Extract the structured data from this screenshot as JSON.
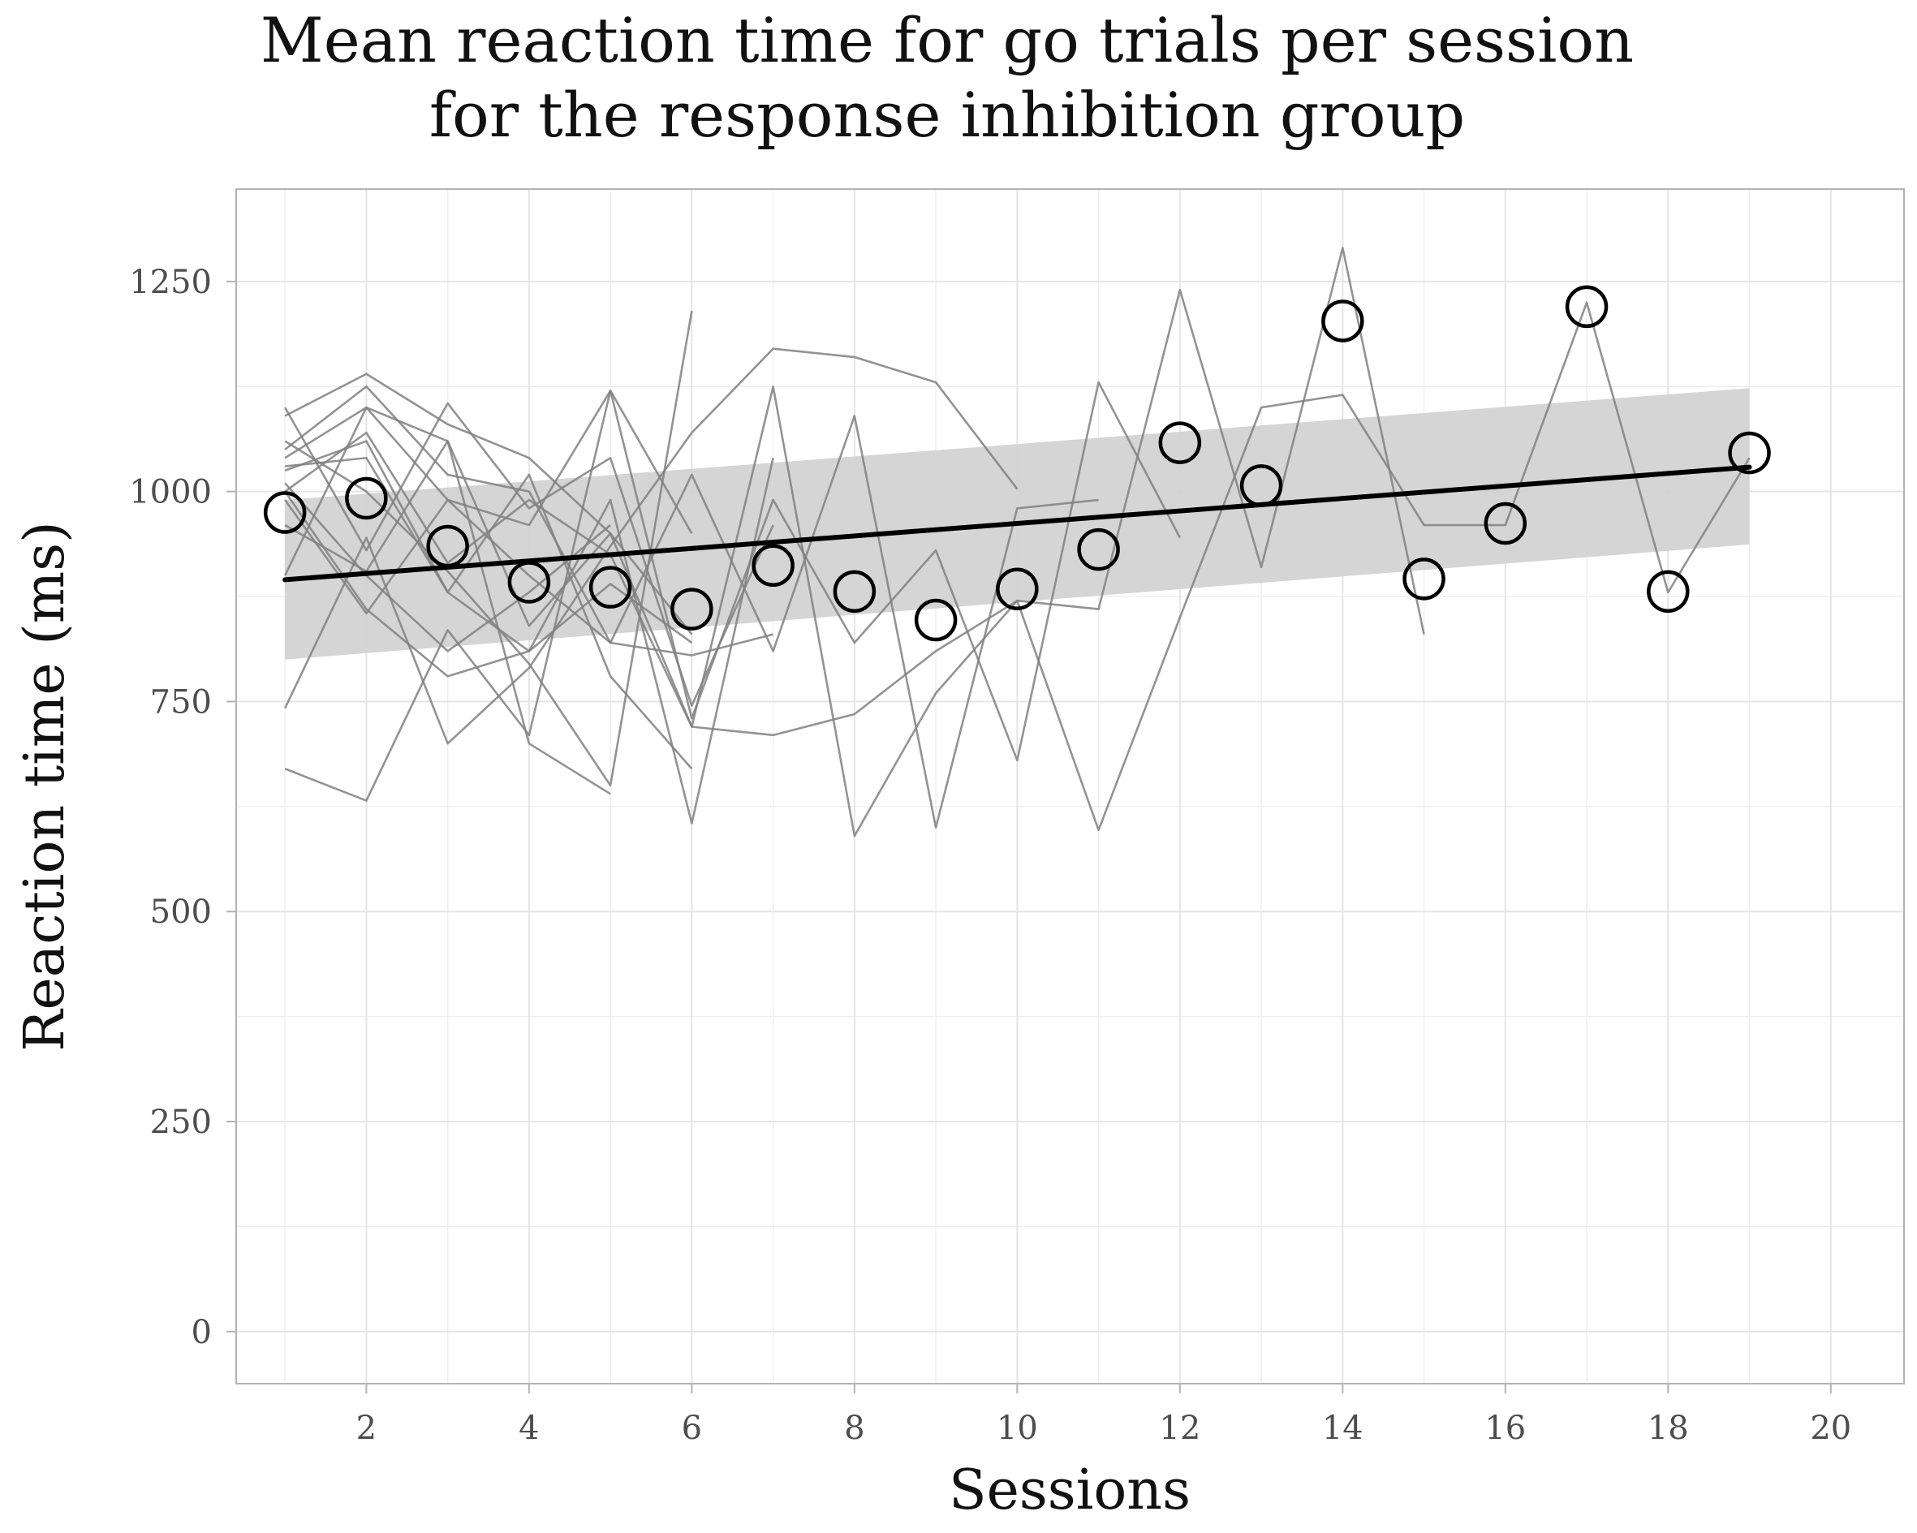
{
  "chart_data": {
    "type": "line",
    "title_lines": [
      "Mean reaction time for go trials per session",
      "for the response inhibition group"
    ],
    "xlabel": "Sessions",
    "ylabel": "Reaction time (ms)",
    "xlim": [
      0.4,
      20.9
    ],
    "ylim": [
      -62,
      1360
    ],
    "xticks": [
      2,
      4,
      6,
      8,
      10,
      12,
      14,
      16,
      18,
      20
    ],
    "xtick_labels": [
      "2",
      "4",
      "6",
      "8",
      "10",
      "12",
      "14",
      "16",
      "18",
      "20"
    ],
    "yticks": [
      0,
      250,
      500,
      750,
      1000,
      1250
    ],
    "ytick_labels": [
      "0",
      "250",
      "500",
      "750",
      "1000",
      "1250"
    ],
    "grid": true,
    "colors": {
      "participant_lines": "#808080",
      "mean_markers": "#000000",
      "trend_line": "#000000",
      "confidence_band": "#d3d3d3",
      "grid": "#e5e5e5",
      "panel_border": "#b3b3b3"
    },
    "session_means": {
      "x": [
        1,
        2,
        3,
        4,
        5,
        6,
        7,
        8,
        9,
        10,
        11,
        12,
        13,
        14,
        15,
        16,
        17,
        18,
        19
      ],
      "y": [
        975,
        992,
        935,
        892,
        886,
        860,
        912,
        881,
        847,
        884,
        931,
        1058,
        1007,
        1203,
        896,
        962,
        1220,
        881,
        1046
      ]
    },
    "trend": {
      "x": [
        1,
        19
      ],
      "y": [
        895,
        1029
      ],
      "band_lower": [
        800,
        937
      ],
      "band_upper": [
        990,
        1123
      ]
    },
    "participant_series": [
      {
        "x": [
          1,
          2,
          3,
          4,
          5,
          6,
          7,
          8,
          9,
          10
        ],
        "y": [
          742,
          945,
          700,
          790,
          935,
          1070,
          1170,
          1160,
          1130,
          1003
        ]
      },
      {
        "x": [
          1,
          2,
          3,
          4,
          5,
          6
        ],
        "y": [
          670,
          632,
          835,
          710,
          1120,
          950
        ]
      },
      {
        "x": [
          1,
          2,
          3,
          4,
          5,
          6,
          7
        ],
        "y": [
          1000,
          860,
          780,
          810,
          990,
          605,
          1040
        ]
      },
      {
        "x": [
          1,
          2,
          3,
          4,
          5,
          6,
          7,
          8,
          9,
          10,
          11,
          12,
          13,
          14,
          15
        ],
        "y": [
          1090,
          1140,
          1080,
          1040,
          950,
          720,
          710,
          735,
          810,
          870,
          860,
          1240,
          910,
          1290,
          830
        ]
      },
      {
        "x": [
          1,
          2,
          3,
          4,
          5
        ],
        "y": [
          1040,
          1100,
          1060,
          700,
          640
        ]
      },
      {
        "x": [
          1,
          2,
          3,
          4,
          5,
          6
        ],
        "y": [
          1060,
          1000,
          905,
          795,
          650,
          1215
        ]
      },
      {
        "x": [
          1,
          2,
          3,
          4,
          5,
          6,
          7
        ],
        "y": [
          1100,
          930,
          1105,
          980,
          1040,
          745,
          960
        ]
      },
      {
        "x": [
          1,
          2,
          3,
          4,
          5,
          6
        ],
        "y": [
          1025,
          1060,
          880,
          1020,
          780,
          670
        ]
      },
      {
        "x": [
          1,
          2,
          3,
          4,
          5,
          6,
          7,
          8,
          9,
          10,
          11,
          12
        ],
        "y": [
          900,
          1100,
          990,
          960,
          1120,
          730,
          990,
          820,
          930,
          680,
          1130,
          945
        ]
      },
      {
        "x": [
          1,
          2,
          3,
          4,
          5,
          6,
          7,
          8,
          9,
          10,
          11
        ],
        "y": [
          990,
          855,
          990,
          900,
          820,
          1020,
          810,
          1090,
          600,
          980,
          990
        ]
      },
      {
        "x": [
          1,
          2,
          3,
          4,
          5,
          6,
          7
        ],
        "y": [
          1050,
          1125,
          1020,
          1000,
          820,
          805,
          830
        ]
      },
      {
        "x": [
          1,
          2,
          3,
          4,
          5,
          6
        ],
        "y": [
          1030,
          1040,
          880,
          810,
          890,
          820
        ]
      },
      {
        "x": [
          1,
          2,
          3,
          4,
          5,
          6,
          7,
          8,
          9,
          10,
          11,
          12,
          13,
          14,
          15,
          16,
          17,
          18,
          19
        ],
        "y": [
          1000,
          1070,
          915,
          990,
          925,
          720,
          1125,
          590,
          760,
          870,
          597,
          850,
          1100,
          1115,
          960,
          960,
          1225,
          880,
          1040
        ]
      },
      {
        "x": [
          1,
          2,
          3,
          4,
          5,
          6
        ],
        "y": [
          960,
          905,
          1060,
          840,
          950,
          830
        ]
      },
      {
        "x": [
          1,
          2,
          3,
          4,
          5
        ],
        "y": [
          1010,
          900,
          810,
          880,
          960
        ]
      }
    ]
  }
}
